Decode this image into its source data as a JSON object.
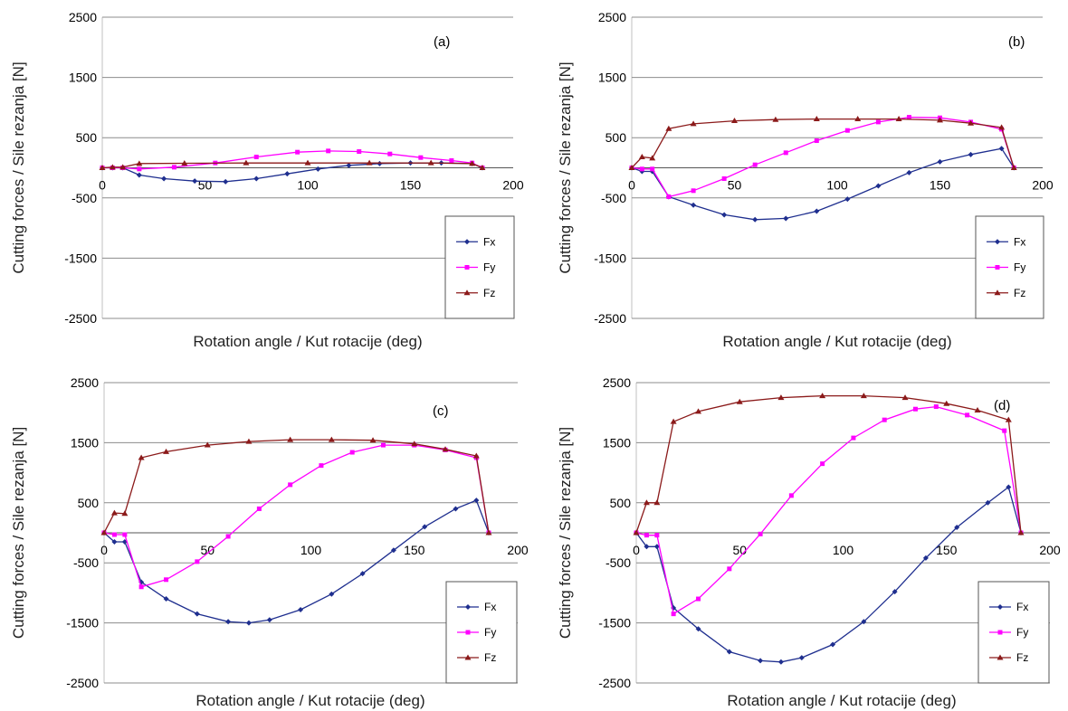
{
  "figure": {
    "colors": {
      "Fx": "#1f2f8f",
      "Fy": "#ff00ff",
      "Fz": "#8b1a1a",
      "grid": "#8c8c8c",
      "axis": "#c0c0c0"
    },
    "xlabel": "Rotation angle / Kut rotacije (deg)",
    "ylabel": "Cutting forces / Sile rezanja [N]"
  },
  "chart_data": [
    {
      "type": "line",
      "label": "(a)",
      "xlim": [
        0,
        200
      ],
      "ylim": [
        -2500,
        2500
      ],
      "xticks": [
        "0",
        "50",
        "100",
        "150",
        "200"
      ],
      "yticks": [
        "2500",
        "1500",
        "500",
        "-500",
        "-1500",
        "-2500"
      ],
      "grid": "horizontal",
      "legend": "bottom-right",
      "series": [
        {
          "name": "Fx",
          "points": [
            [
              0,
              0
            ],
            [
              5,
              0
            ],
            [
              10,
              0
            ],
            [
              18,
              -120
            ],
            [
              30,
              -180
            ],
            [
              45,
              -220
            ],
            [
              60,
              -230
            ],
            [
              75,
              -180
            ],
            [
              90,
              -100
            ],
            [
              105,
              -20
            ],
            [
              120,
              40
            ],
            [
              135,
              70
            ],
            [
              150,
              80
            ],
            [
              165,
              80
            ],
            [
              180,
              70
            ],
            [
              185,
              0
            ]
          ]
        },
        {
          "name": "Fy",
          "points": [
            [
              0,
              0
            ],
            [
              5,
              0
            ],
            [
              10,
              0
            ],
            [
              18,
              -20
            ],
            [
              35,
              10
            ],
            [
              55,
              80
            ],
            [
              75,
              180
            ],
            [
              95,
              260
            ],
            [
              110,
              280
            ],
            [
              125,
              270
            ],
            [
              140,
              230
            ],
            [
              155,
              170
            ],
            [
              170,
              120
            ],
            [
              180,
              80
            ],
            [
              185,
              0
            ]
          ]
        },
        {
          "name": "Fz",
          "points": [
            [
              0,
              0
            ],
            [
              5,
              10
            ],
            [
              10,
              10
            ],
            [
              18,
              70
            ],
            [
              40,
              75
            ],
            [
              70,
              80
            ],
            [
              100,
              80
            ],
            [
              130,
              80
            ],
            [
              160,
              80
            ],
            [
              180,
              70
            ],
            [
              185,
              0
            ]
          ]
        }
      ]
    },
    {
      "type": "line",
      "label": "(b)",
      "xlim": [
        0,
        200
      ],
      "ylim": [
        -2500,
        2500
      ],
      "xticks": [
        "0",
        "50",
        "100",
        "150",
        "200"
      ],
      "yticks": [
        "2500",
        "1500",
        "500",
        "-500",
        "-1500",
        "-2500"
      ],
      "grid": "horizontal",
      "legend": "bottom-right",
      "series": [
        {
          "name": "Fx",
          "points": [
            [
              0,
              0
            ],
            [
              5,
              -60
            ],
            [
              10,
              -60
            ],
            [
              18,
              -480
            ],
            [
              30,
              -620
            ],
            [
              45,
              -780
            ],
            [
              60,
              -860
            ],
            [
              75,
              -840
            ],
            [
              90,
              -720
            ],
            [
              105,
              -520
            ],
            [
              120,
              -300
            ],
            [
              135,
              -80
            ],
            [
              150,
              100
            ],
            [
              165,
              220
            ],
            [
              180,
              320
            ],
            [
              186,
              0
            ]
          ]
        },
        {
          "name": "Fy",
          "points": [
            [
              0,
              0
            ],
            [
              5,
              -20
            ],
            [
              10,
              -20
            ],
            [
              18,
              -480
            ],
            [
              30,
              -380
            ],
            [
              45,
              -180
            ],
            [
              60,
              50
            ],
            [
              75,
              250
            ],
            [
              90,
              450
            ],
            [
              105,
              620
            ],
            [
              120,
              760
            ],
            [
              135,
              840
            ],
            [
              150,
              830
            ],
            [
              165,
              760
            ],
            [
              180,
              640
            ],
            [
              186,
              0
            ]
          ]
        },
        {
          "name": "Fz",
          "points": [
            [
              0,
              0
            ],
            [
              5,
              180
            ],
            [
              10,
              160
            ],
            [
              18,
              650
            ],
            [
              30,
              730
            ],
            [
              50,
              780
            ],
            [
              70,
              800
            ],
            [
              90,
              810
            ],
            [
              110,
              810
            ],
            [
              130,
              810
            ],
            [
              150,
              790
            ],
            [
              165,
              740
            ],
            [
              180,
              670
            ],
            [
              186,
              0
            ]
          ]
        }
      ]
    },
    {
      "type": "line",
      "label": "(c)",
      "xlim": [
        0,
        200
      ],
      "ylim": [
        -2500,
        2500
      ],
      "xticks": [
        "0",
        "50",
        "100",
        "150",
        "200"
      ],
      "yticks": [
        "2500",
        "1500",
        "500",
        "-500",
        "-1500",
        "-2500"
      ],
      "grid": "horizontal",
      "legend": "bottom-right",
      "series": [
        {
          "name": "Fx",
          "points": [
            [
              0,
              0
            ],
            [
              5,
              -150
            ],
            [
              10,
              -150
            ],
            [
              18,
              -820
            ],
            [
              30,
              -1100
            ],
            [
              45,
              -1350
            ],
            [
              60,
              -1480
            ],
            [
              70,
              -1500
            ],
            [
              80,
              -1450
            ],
            [
              95,
              -1280
            ],
            [
              110,
              -1020
            ],
            [
              125,
              -680
            ],
            [
              140,
              -290
            ],
            [
              155,
              100
            ],
            [
              170,
              400
            ],
            [
              180,
              540
            ],
            [
              186,
              0
            ]
          ]
        },
        {
          "name": "Fy",
          "points": [
            [
              0,
              0
            ],
            [
              5,
              -30
            ],
            [
              10,
              -30
            ],
            [
              18,
              -900
            ],
            [
              30,
              -780
            ],
            [
              45,
              -480
            ],
            [
              60,
              -60
            ],
            [
              75,
              400
            ],
            [
              90,
              800
            ],
            [
              105,
              1120
            ],
            [
              120,
              1340
            ],
            [
              135,
              1460
            ],
            [
              150,
              1460
            ],
            [
              165,
              1380
            ],
            [
              180,
              1250
            ],
            [
              186,
              0
            ]
          ]
        },
        {
          "name": "Fz",
          "points": [
            [
              0,
              0
            ],
            [
              5,
              330
            ],
            [
              10,
              320
            ],
            [
              18,
              1250
            ],
            [
              30,
              1350
            ],
            [
              50,
              1460
            ],
            [
              70,
              1520
            ],
            [
              90,
              1550
            ],
            [
              110,
              1550
            ],
            [
              130,
              1540
            ],
            [
              150,
              1480
            ],
            [
              165,
              1390
            ],
            [
              180,
              1280
            ],
            [
              186,
              0
            ]
          ]
        }
      ]
    },
    {
      "type": "line",
      "label": "(d)",
      "xlim": [
        0,
        200
      ],
      "ylim": [
        -2500,
        2500
      ],
      "xticks": [
        "0",
        "50",
        "100",
        "150",
        "200"
      ],
      "yticks": [
        "2500",
        "1500",
        "500",
        "-500",
        "-1500",
        "-2500"
      ],
      "grid": "horizontal",
      "legend": "bottom-right",
      "series": [
        {
          "name": "Fx",
          "points": [
            [
              0,
              0
            ],
            [
              5,
              -230
            ],
            [
              10,
              -230
            ],
            [
              18,
              -1250
            ],
            [
              30,
              -1600
            ],
            [
              45,
              -1980
            ],
            [
              60,
              -2130
            ],
            [
              70,
              -2150
            ],
            [
              80,
              -2080
            ],
            [
              95,
              -1860
            ],
            [
              110,
              -1480
            ],
            [
              125,
              -980
            ],
            [
              140,
              -420
            ],
            [
              155,
              90
            ],
            [
              170,
              500
            ],
            [
              180,
              760
            ],
            [
              186,
              0
            ]
          ]
        },
        {
          "name": "Fy",
          "points": [
            [
              0,
              0
            ],
            [
              5,
              -40
            ],
            [
              10,
              -40
            ],
            [
              18,
              -1350
            ],
            [
              30,
              -1100
            ],
            [
              45,
              -600
            ],
            [
              60,
              -20
            ],
            [
              75,
              620
            ],
            [
              90,
              1150
            ],
            [
              105,
              1580
            ],
            [
              120,
              1880
            ],
            [
              135,
              2060
            ],
            [
              145,
              2100
            ],
            [
              160,
              1960
            ],
            [
              178,
              1700
            ],
            [
              186,
              0
            ]
          ]
        },
        {
          "name": "Fz",
          "points": [
            [
              0,
              0
            ],
            [
              5,
              500
            ],
            [
              10,
              500
            ],
            [
              18,
              1850
            ],
            [
              30,
              2020
            ],
            [
              50,
              2180
            ],
            [
              70,
              2250
            ],
            [
              90,
              2280
            ],
            [
              110,
              2280
            ],
            [
              130,
              2250
            ],
            [
              150,
              2150
            ],
            [
              165,
              2040
            ],
            [
              180,
              1880
            ],
            [
              186,
              0
            ]
          ]
        }
      ]
    }
  ]
}
